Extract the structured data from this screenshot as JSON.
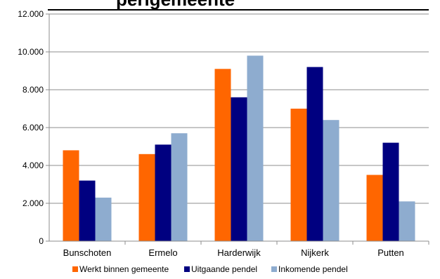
{
  "partial_title": "perigemeente",
  "chart_data": {
    "type": "bar",
    "categories": [
      "Bunschoten",
      "Ermelo",
      "Harderwijk",
      "Nijkerk",
      "Putten"
    ],
    "series": [
      {
        "name": "Werkt binnen gemeente",
        "color": "#FF6600",
        "values": [
          4800,
          4600,
          9100,
          7000,
          3500
        ]
      },
      {
        "name": "Uitgaande pendel",
        "color": "#000080",
        "values": [
          3200,
          5100,
          7600,
          9200,
          5200
        ]
      },
      {
        "name": "Inkomende pendel",
        "color": "#8EACCF",
        "values": [
          2300,
          5700,
          9800,
          6400,
          2100
        ]
      }
    ],
    "ylim": [
      0,
      12000
    ],
    "yticks": [
      0,
      2000,
      4000,
      6000,
      8000,
      10000,
      12000
    ],
    "ytick_labels": [
      "0",
      "2.000",
      "4.000",
      "6.000",
      "8.000",
      "10.000",
      "12.000"
    ],
    "grid": true,
    "legend_position": "bottom"
  }
}
